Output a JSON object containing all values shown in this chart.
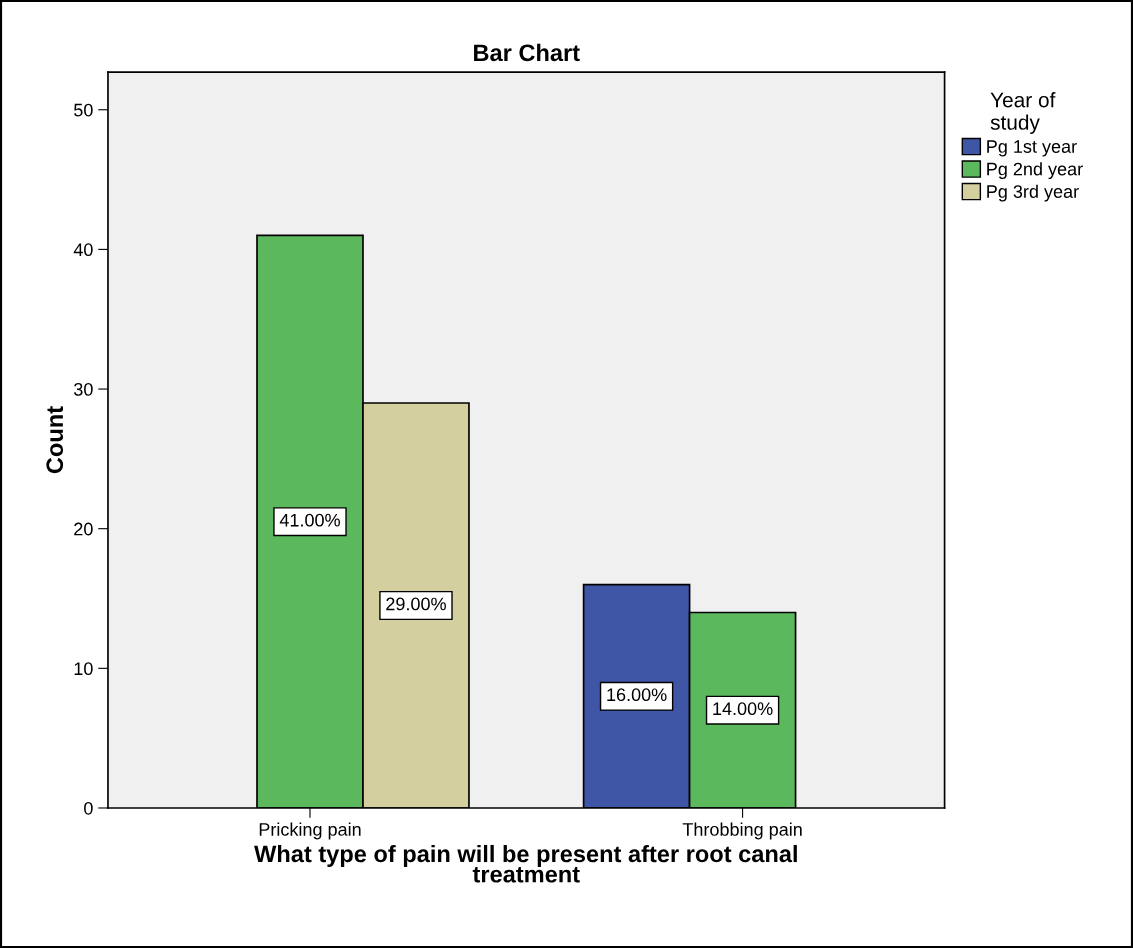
{
  "chart_data": {
    "type": "bar",
    "title": "Bar Chart",
    "xlabel": "What type of pain will be present after root canal\ntreatment",
    "ylabel": "Count",
    "legend_title": "Year of\nstudy",
    "categories": [
      "Pricking pain",
      "Throbbing pain"
    ],
    "series": [
      {
        "name": "Pg 1st year",
        "color": "#3f55a6",
        "values": [
          null,
          16
        ],
        "value_labels": [
          null,
          "16.00%"
        ]
      },
      {
        "name": "Pg 2nd year",
        "color": "#5cb85c",
        "values": [
          41,
          14
        ],
        "value_labels": [
          "41.00%",
          "14.00%"
        ]
      },
      {
        "name": "Pg 3rd year",
        "color": "#d4cf9e",
        "values": [
          29,
          null
        ],
        "value_labels": [
          "29.00%",
          null
        ]
      }
    ],
    "ylim": [
      0,
      52.7
    ],
    "yticks": [
      0,
      10,
      20,
      30,
      40,
      50
    ],
    "grid": false,
    "legend": "top right"
  }
}
